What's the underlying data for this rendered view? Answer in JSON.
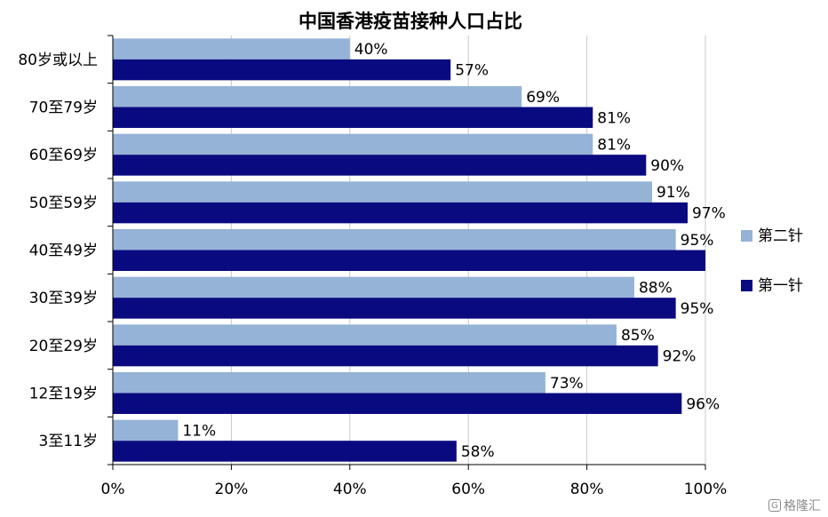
{
  "chart_data": {
    "type": "bar",
    "orientation": "horizontal",
    "title": "中国香港疫苗接种人口占比",
    "categories": [
      "80岁或以上",
      "70至79岁",
      "60至69岁",
      "50至59岁",
      "40至49岁",
      "30至39岁",
      "20至29岁",
      "12至19岁",
      "3至11岁"
    ],
    "series": [
      {
        "name": "第二针",
        "color": "#95B3D7",
        "values": [
          40,
          69,
          81,
          91,
          95,
          88,
          85,
          73,
          11
        ]
      },
      {
        "name": "第一针",
        "color": "#0A0A80",
        "values": [
          57,
          81,
          90,
          97,
          100,
          95,
          92,
          96,
          58
        ]
      }
    ],
    "data_labels": [
      [
        "40%",
        "69%",
        "81%",
        "91%",
        "95%",
        "88%",
        "85%",
        "73%",
        "11%"
      ],
      [
        "57%",
        "81%",
        "90%",
        "97%",
        "",
        "95%",
        "92%",
        "96%",
        "58%"
      ]
    ],
    "xlim": [
      0,
      100
    ],
    "xticks": [
      "0%",
      "20%",
      "40%",
      "60%",
      "80%",
      "100%"
    ],
    "xlabel": "",
    "ylabel": "",
    "grid": true,
    "legend_position": "right"
  },
  "watermark": {
    "text": "格隆汇",
    "logo": "G"
  }
}
